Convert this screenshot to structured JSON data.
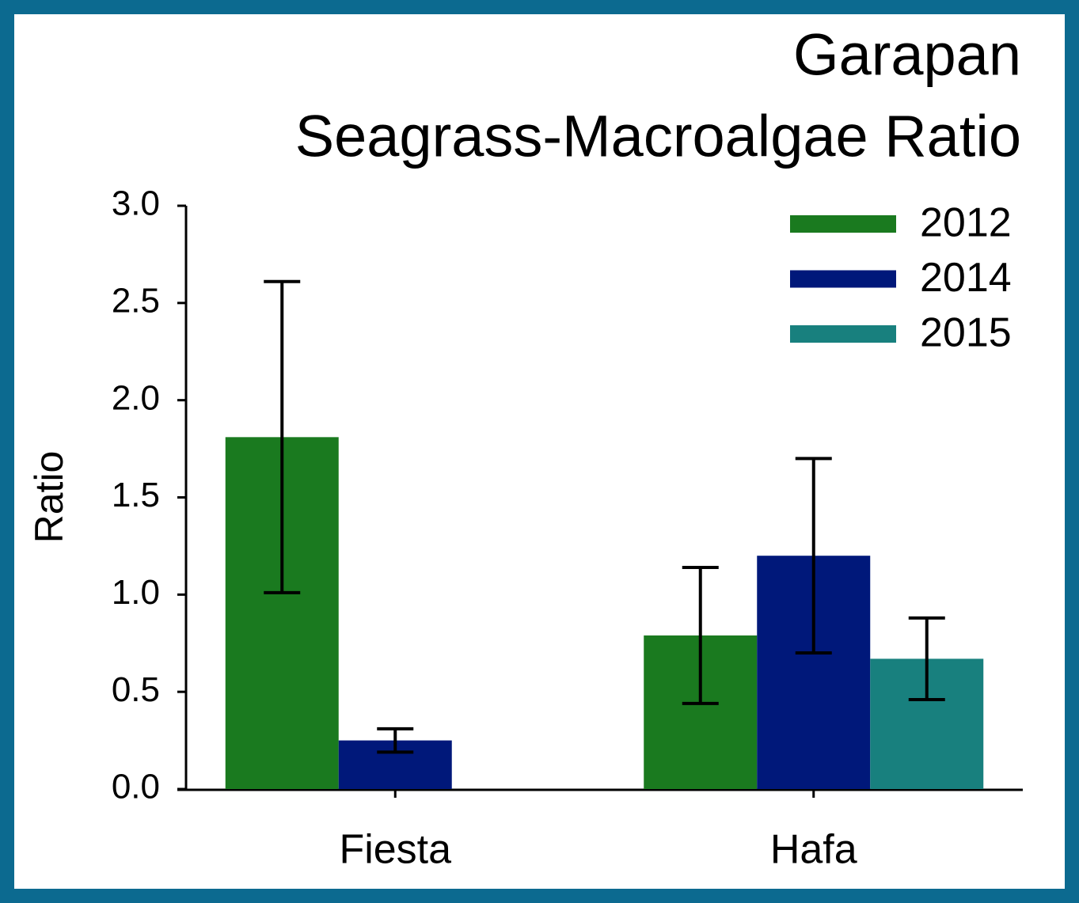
{
  "chart_data": {
    "type": "bar",
    "title": [
      "Garapan",
      "Seagrass-Macroalgae Ratio"
    ],
    "y_label": "Ratio",
    "categories": [
      "Fiesta",
      "Hafa"
    ],
    "series": [
      {
        "name": "2012",
        "color": "#1a7a1f",
        "values": [
          1.81,
          0.79
        ],
        "errors": [
          0.8,
          0.35
        ]
      },
      {
        "name": "2014",
        "color": "#00187a",
        "values": [
          0.25,
          1.2
        ],
        "errors": [
          0.06,
          0.5
        ]
      },
      {
        "name": "2015",
        "color": "#18807e",
        "values": [
          null,
          0.67
        ],
        "errors": [
          null,
          0.21
        ]
      }
    ],
    "ylim": [
      0,
      3
    ],
    "yticks": [
      {
        "value": 0,
        "label": "0.0"
      },
      0.5,
      {
        "value": 1,
        "label": "1.0"
      },
      1.5,
      {
        "value": 2,
        "label": "2.0"
      },
      2.5,
      {
        "value": 3,
        "label": "3.0"
      }
    ],
    "legend": "top-right"
  }
}
